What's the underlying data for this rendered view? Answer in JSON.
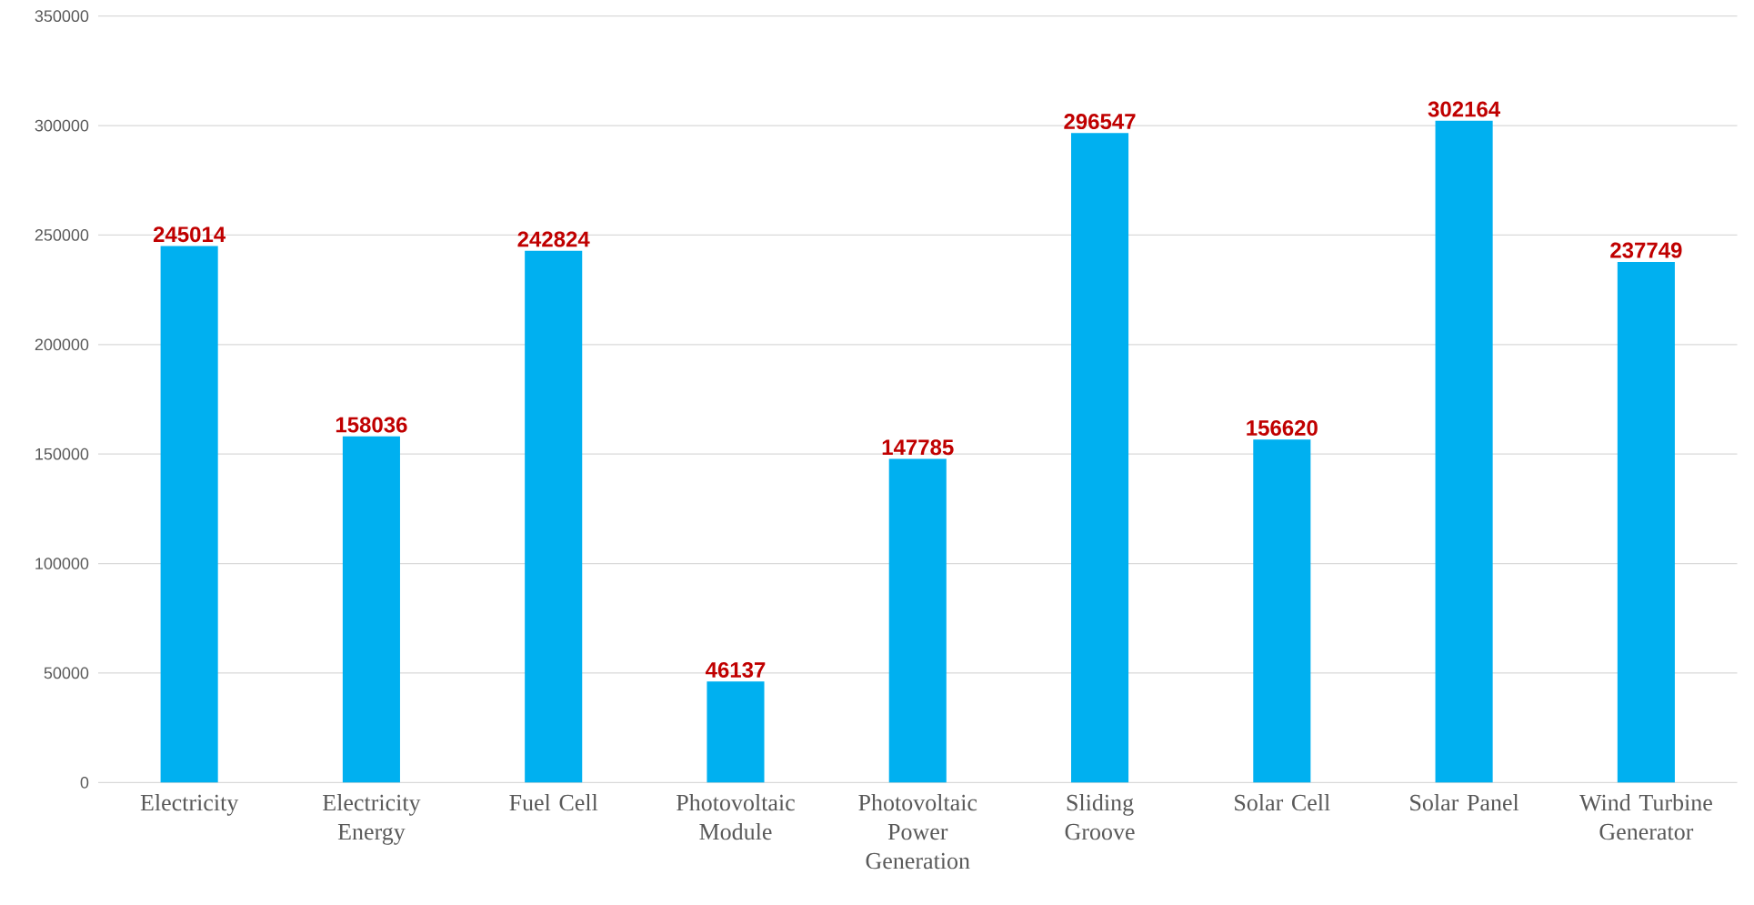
{
  "chart_data": {
    "type": "bar",
    "categories": [
      "Electricity",
      "Electricity Energy",
      "Fuel Cell",
      "Photovoltaic Module",
      "Photovoltaic Power Generation",
      "Sliding Groove",
      "Solar Cell",
      "Solar Panel",
      "Wind Turbine Generator"
    ],
    "values": [
      245014,
      158036,
      242824,
      46137,
      147785,
      296547,
      156620,
      302164,
      237749
    ],
    "color": "#00b0f0",
    "ylim": [
      0,
      350000
    ],
    "yticks": [
      0,
      50000,
      100000,
      150000,
      200000,
      250000,
      300000,
      350000
    ],
    "grid": "y",
    "data_labels": true
  }
}
